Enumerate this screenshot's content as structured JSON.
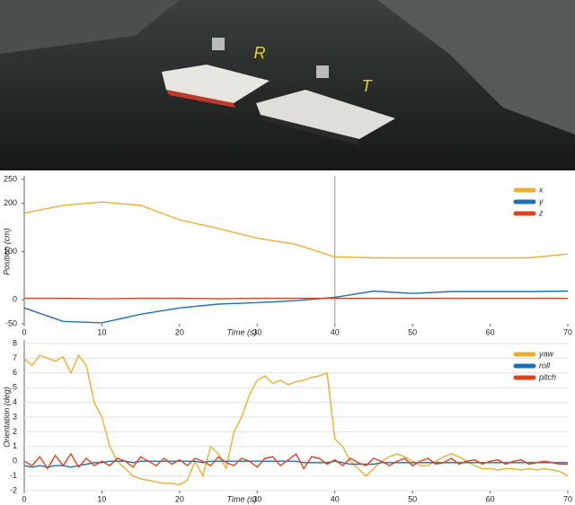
{
  "photo": {
    "labels": [
      "R",
      "T"
    ]
  },
  "chart_data": [
    {
      "type": "line",
      "y_label": "Position (cm)",
      "x_label": "Time (s)",
      "x": [
        0,
        5,
        10,
        15,
        20,
        25,
        30,
        35,
        40,
        45,
        50,
        55,
        60,
        65,
        70
      ],
      "xlim": [
        0,
        70
      ],
      "xticks": [
        0,
        10,
        20,
        30,
        40,
        50,
        60,
        70
      ],
      "ylim": [
        -50,
        250
      ],
      "yticks": [
        -50,
        0,
        100,
        200,
        250
      ],
      "grid": false,
      "legend": "upper right",
      "reference_x": 40,
      "series": [
        {
          "name": "x",
          "color": "#e8b030",
          "values": [
            180,
            196,
            203,
            196,
            166,
            148,
            128,
            115,
            89,
            87,
            87,
            87,
            87,
            87,
            95
          ]
        },
        {
          "name": "y",
          "color": "#1f6fb5",
          "values": [
            -17,
            -45,
            -48,
            -30,
            -17,
            -9,
            -6,
            -2,
            5,
            18,
            13,
            17,
            17,
            17,
            18
          ]
        },
        {
          "name": "z",
          "color": "#d9431e",
          "values": [
            3,
            3,
            2,
            3,
            3,
            2,
            3,
            3,
            3,
            3,
            3,
            3,
            3,
            3,
            3
          ]
        }
      ]
    },
    {
      "type": "line",
      "y_label": "Orientation (deg)",
      "x_label": "Time (s)",
      "x": [
        0,
        1,
        2,
        3,
        4,
        5,
        6,
        7,
        8,
        9,
        10,
        11,
        12,
        13,
        14,
        15,
        16,
        17,
        18,
        19,
        20,
        21,
        22,
        23,
        24,
        25,
        26,
        27,
        28,
        29,
        30,
        31,
        32,
        33,
        34,
        35,
        36,
        37,
        38,
        39,
        40,
        41,
        42,
        43,
        44,
        45,
        46,
        47,
        48,
        49,
        50,
        51,
        52,
        53,
        54,
        55,
        56,
        57,
        58,
        59,
        60,
        61,
        62,
        63,
        64,
        65,
        66,
        67,
        68,
        69,
        70
      ],
      "xlim": [
        0,
        70
      ],
      "xticks": [
        0,
        10,
        20,
        30,
        40,
        50,
        60,
        70
      ],
      "ylim": [
        -2,
        8
      ],
      "yticks": [
        -2,
        -1,
        0,
        1,
        2,
        3,
        4,
        5,
        6,
        7,
        8
      ],
      "grid": true,
      "legend": "upper right",
      "series": [
        {
          "name": "yaw",
          "color": "#e8b030",
          "values": [
            7,
            6.5,
            7.2,
            7,
            6.8,
            7.1,
            6,
            7.2,
            6.5,
            4,
            3,
            1,
            0,
            -0.5,
            -1,
            -1.2,
            -1.3,
            -1.4,
            -1.5,
            -1.5,
            -1.6,
            -1.3,
            0,
            -1,
            1,
            0.5,
            -0.5,
            2,
            3,
            4.5,
            5.5,
            5.8,
            5.3,
            5.5,
            5.2,
            5.4,
            5.5,
            5.7,
            5.8,
            6,
            1.5,
            1,
            0,
            -0.5,
            -1,
            -0.5,
            0,
            0.3,
            0.5,
            0.3,
            0,
            -0.3,
            -0.3,
            0,
            0.3,
            0.5,
            0.3,
            0,
            -0.3,
            -0.5,
            -0.5,
            -0.6,
            -0.5,
            -0.5,
            -0.6,
            -0.5,
            -0.6,
            -0.5,
            -0.6,
            -0.7,
            -1
          ]
        },
        {
          "name": "roll",
          "color": "#1f6fb5",
          "values": [
            -0.3,
            -0.4,
            -0.3,
            -0.4,
            -0.3,
            -0.3,
            -0.4,
            -0.3,
            -0.2,
            -0.1,
            -0.1,
            0,
            0,
            0,
            -0.1,
            0,
            0,
            0,
            0,
            0,
            0,
            0,
            0,
            -0.1,
            0,
            0,
            0,
            0,
            0,
            0,
            0,
            0,
            0,
            0,
            0,
            0,
            -0.1,
            -0.1,
            -0.1,
            -0.1,
            0,
            -0.1,
            -0.2,
            -0.2,
            -0.2,
            -0.2,
            -0.1,
            -0.1,
            -0.1,
            -0.1,
            -0.1,
            -0.1,
            -0.1,
            -0.1,
            -0.1,
            -0.1,
            -0.1,
            -0.1,
            -0.1,
            -0.1,
            -0.1,
            -0.1,
            -0.1,
            -0.1,
            -0.1,
            -0.1,
            -0.1,
            -0.1,
            -0.1,
            -0.1,
            -0.1
          ]
        },
        {
          "name": "pitch",
          "color": "#d9431e",
          "values": [
            0,
            -0.3,
            0.3,
            -0.5,
            0.4,
            -0.3,
            0.5,
            -0.4,
            0.2,
            -0.3,
            0,
            -0.3,
            0.2,
            0,
            -0.4,
            0.3,
            0,
            -0.3,
            0.2,
            -0.2,
            0.1,
            -0.3,
            0.2,
            0,
            -0.3,
            0.3,
            -0.1,
            -0.3,
            0.2,
            0,
            -0.4,
            0.2,
            0.3,
            -0.3,
            0.1,
            0.5,
            -0.5,
            0.3,
            0.2,
            -0.2,
            0.1,
            -0.3,
            0.2,
            -0.1,
            -0.3,
            0.2,
            0,
            -0.3,
            0,
            0.2,
            -0.3,
            0,
            0.2,
            -0.2,
            -0.1,
            0.2,
            -0.2,
            0,
            0.1,
            -0.2,
            0,
            0.1,
            -0.2,
            0,
            0.1,
            -0.2,
            -0.1,
            0,
            -0.1,
            -0.2,
            -0.2
          ]
        }
      ]
    }
  ]
}
